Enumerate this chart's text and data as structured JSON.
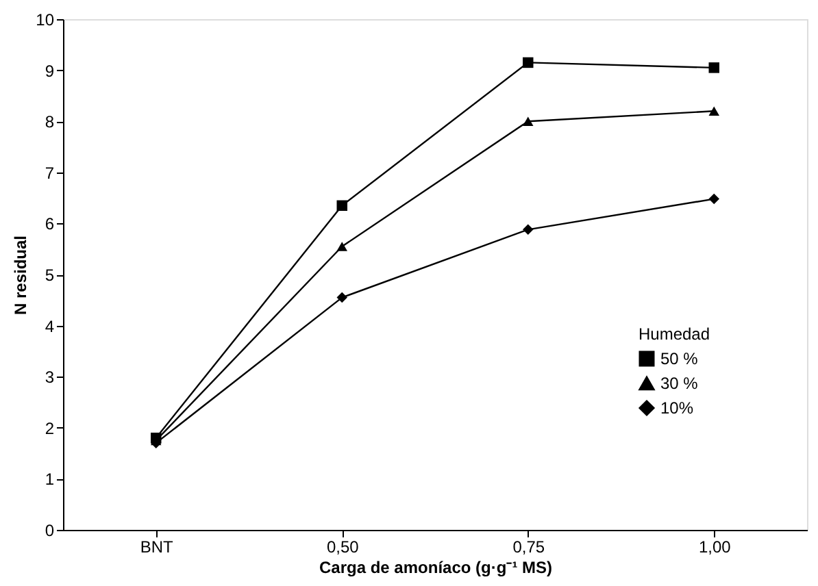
{
  "chart_data": {
    "type": "line",
    "xlabel": "Carga de amoníaco (g·g⁻¹ MS)",
    "ylabel": "N residual",
    "legend_title": "Humedad",
    "categories": [
      "BNT",
      "0,50",
      "0,75",
      "1,00"
    ],
    "series": [
      {
        "name": "50 %",
        "color": "#000000",
        "marker": "square",
        "values": [
          1.8,
          6.35,
          9.15,
          9.05
        ]
      },
      {
        "name": "30 %",
        "color": "#000000",
        "marker": "triangle",
        "values": [
          1.75,
          5.55,
          8.0,
          8.2
        ]
      },
      {
        "name": "10%",
        "color": "#000000",
        "marker": "diamond",
        "values": [
          1.7,
          4.55,
          5.88,
          6.48
        ]
      }
    ],
    "ylim": [
      0,
      10
    ],
    "yticks": [
      0,
      1,
      2,
      3,
      4,
      5,
      6,
      7,
      8,
      9,
      10
    ],
    "grid": false,
    "legend": "right",
    "line_style": "solid"
  }
}
